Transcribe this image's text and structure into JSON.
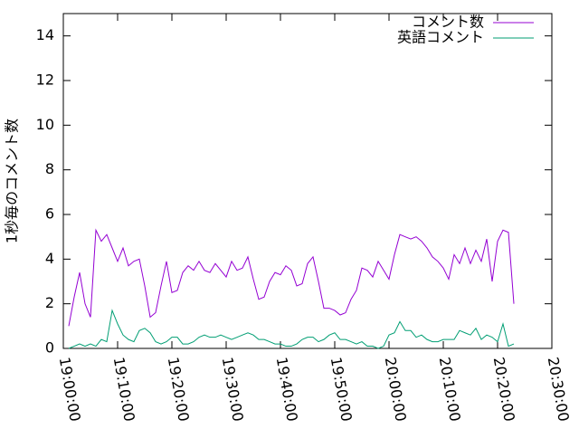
{
  "chart_data": {
    "type": "line",
    "y_label": "1秒毎のコメント数",
    "x": [
      "19:01:00",
      "19:02:00",
      "19:03:00",
      "19:04:00",
      "19:05:00",
      "19:06:00",
      "19:07:00",
      "19:08:00",
      "19:09:00",
      "19:10:00",
      "19:11:00",
      "19:12:00",
      "19:13:00",
      "19:14:00",
      "19:15:00",
      "19:16:00",
      "19:17:00",
      "19:18:00",
      "19:19:00",
      "19:20:00",
      "19:21:00",
      "19:22:00",
      "19:23:00",
      "19:24:00",
      "19:25:00",
      "19:26:00",
      "19:27:00",
      "19:28:00",
      "19:29:00",
      "19:30:00",
      "19:31:00",
      "19:32:00",
      "19:33:00",
      "19:34:00",
      "19:35:00",
      "19:36:00",
      "19:37:00",
      "19:38:00",
      "19:39:00",
      "19:40:00",
      "19:41:00",
      "19:42:00",
      "19:43:00",
      "19:44:00",
      "19:45:00",
      "19:46:00",
      "19:47:00",
      "19:48:00",
      "19:49:00",
      "19:50:00",
      "19:51:00",
      "19:52:00",
      "19:53:00",
      "19:54:00",
      "19:55:00",
      "19:56:00",
      "19:57:00",
      "19:58:00",
      "19:59:00",
      "20:00:00",
      "20:01:00",
      "20:02:00",
      "20:03:00",
      "20:04:00",
      "20:05:00",
      "20:06:00",
      "20:07:00",
      "20:08:00",
      "20:09:00",
      "20:10:00",
      "20:11:00",
      "20:12:00",
      "20:13:00",
      "20:14:00",
      "20:15:00",
      "20:16:00",
      "20:17:00",
      "20:18:00",
      "20:19:00",
      "20:20:00",
      "20:21:00",
      "20:22:00",
      "20:23:00"
    ],
    "series": [
      {
        "name": "コメント数",
        "color": "#9400d3",
        "values": [
          1.0,
          2.3,
          3.4,
          2.0,
          1.4,
          5.3,
          4.8,
          5.1,
          4.5,
          3.9,
          4.5,
          3.7,
          3.9,
          4.0,
          2.8,
          1.4,
          1.6,
          2.8,
          3.9,
          2.5,
          2.6,
          3.4,
          3.7,
          3.5,
          3.9,
          3.5,
          3.4,
          3.8,
          3.5,
          3.2,
          3.9,
          3.5,
          3.6,
          4.1,
          3.1,
          2.2,
          2.3,
          3.0,
          3.4,
          3.3,
          3.7,
          3.5,
          2.8,
          2.9,
          3.8,
          4.1,
          3.0,
          1.8,
          1.8,
          1.7,
          1.5,
          1.6,
          2.2,
          2.6,
          3.6,
          3.5,
          3.2,
          3.9,
          3.5,
          3.1,
          4.2,
          5.1,
          5.0,
          4.9,
          5.0,
          4.8,
          4.5,
          4.1,
          3.9,
          3.6,
          3.1,
          4.2,
          3.8,
          4.5,
          3.8,
          4.4,
          3.9,
          4.9,
          3.0,
          4.8,
          5.3,
          5.2,
          2.0
        ]
      },
      {
        "name": "英語コメント",
        "color": "#009e73",
        "values": [
          0.0,
          0.1,
          0.2,
          0.1,
          0.2,
          0.1,
          0.4,
          0.3,
          1.7,
          1.1,
          0.6,
          0.4,
          0.3,
          0.8,
          0.9,
          0.7,
          0.3,
          0.2,
          0.3,
          0.5,
          0.5,
          0.2,
          0.2,
          0.3,
          0.5,
          0.6,
          0.5,
          0.5,
          0.6,
          0.5,
          0.4,
          0.5,
          0.6,
          0.7,
          0.6,
          0.4,
          0.4,
          0.3,
          0.2,
          0.2,
          0.1,
          0.1,
          0.2,
          0.4,
          0.5,
          0.5,
          0.3,
          0.4,
          0.6,
          0.7,
          0.4,
          0.4,
          0.3,
          0.2,
          0.3,
          0.1,
          0.1,
          0.0,
          0.1,
          0.6,
          0.7,
          1.2,
          0.8,
          0.8,
          0.5,
          0.6,
          0.4,
          0.3,
          0.3,
          0.4,
          0.4,
          0.4,
          0.8,
          0.7,
          0.6,
          0.9,
          0.4,
          0.6,
          0.5,
          0.3,
          1.1,
          0.1,
          0.2
        ]
      }
    ],
    "xlim": [
      "19:00:00",
      "20:30:00"
    ],
    "xticks": [
      "19:00:00",
      "19:10:00",
      "19:20:00",
      "19:30:00",
      "19:40:00",
      "19:50:00",
      "20:00:00",
      "20:10:00",
      "20:20:00",
      "20:30:00"
    ],
    "ylim": [
      0,
      15
    ],
    "yticks": [
      0,
      2,
      4,
      6,
      8,
      10,
      12,
      14
    ],
    "legend": "top-right"
  }
}
